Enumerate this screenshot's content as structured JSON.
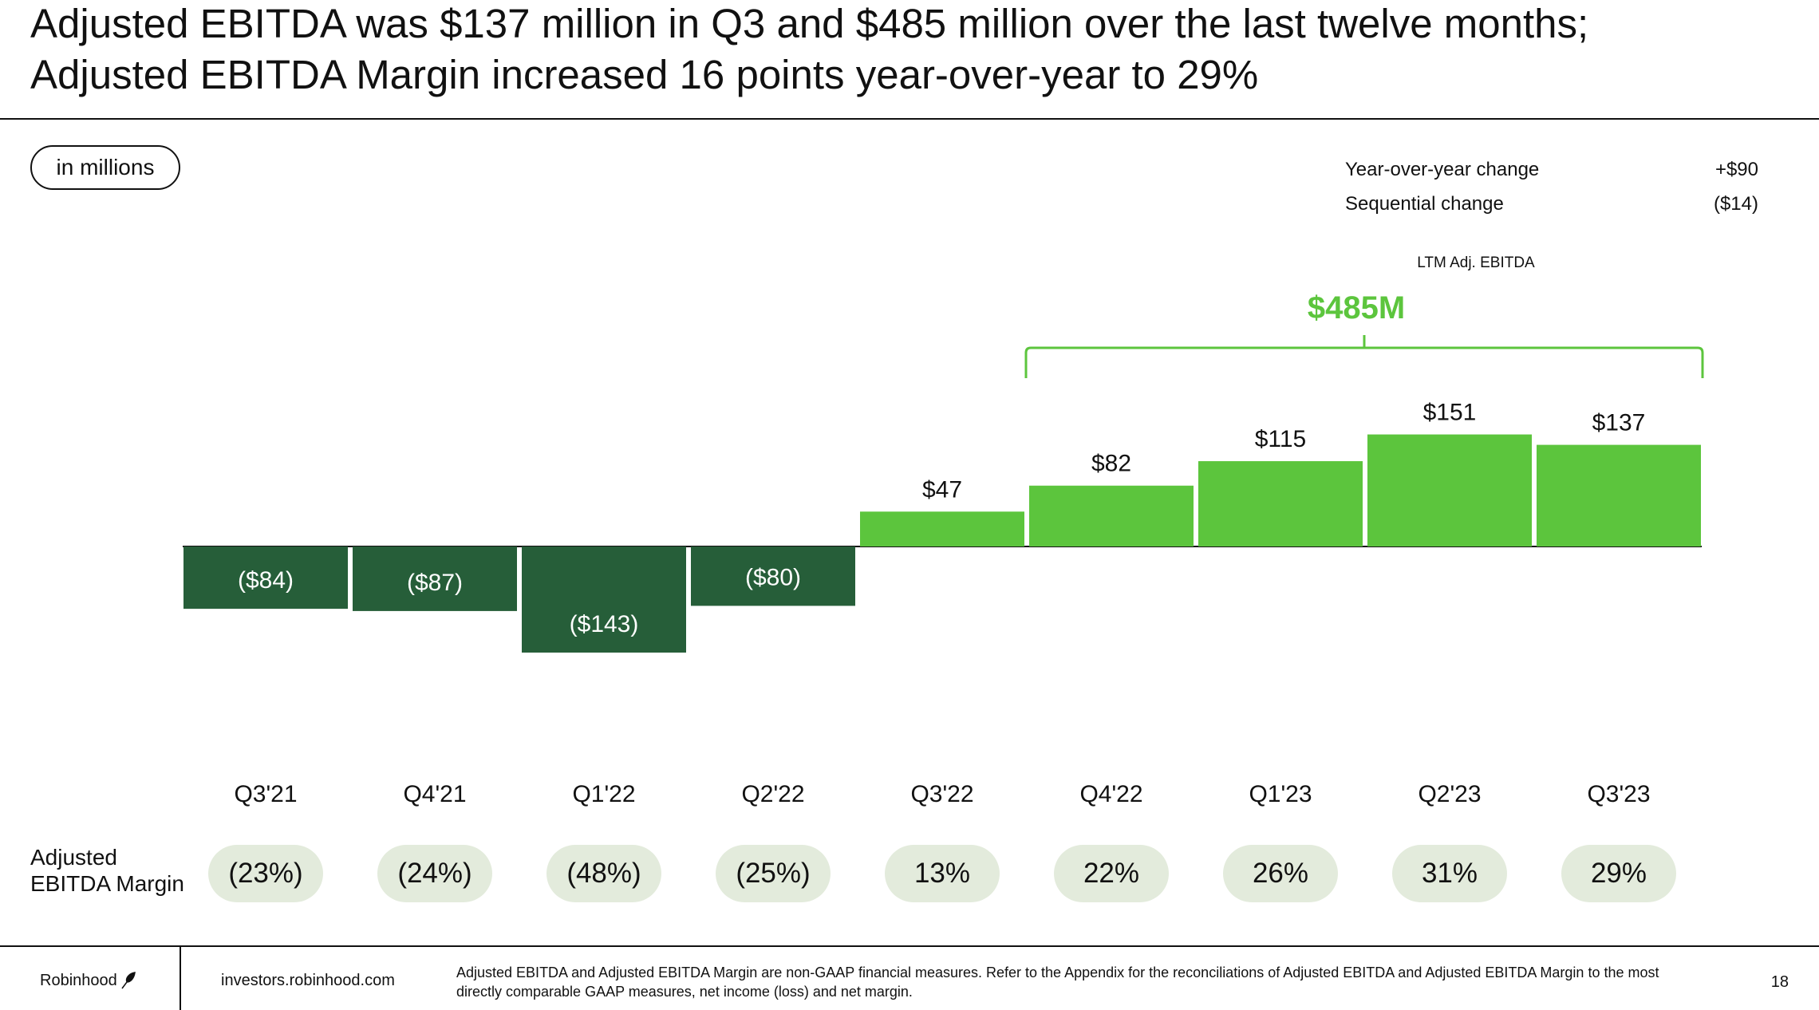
{
  "title": {
    "line1": "Adjusted EBITDA was $137 million in Q3 and $485 million over the last twelve months;",
    "line2": "Adjusted EBITDA Margin increased 16 points year-over-year to 29%"
  },
  "unit_pill": "in millions",
  "changes": {
    "yoy_label": "Year-over-year change",
    "yoy_value": "+$90",
    "seq_label": "Sequential change",
    "seq_value": "($14)"
  },
  "ltm": {
    "label": "LTM Adj. EBITDA",
    "value": "$485M"
  },
  "colors": {
    "negative_bar": "#265e39",
    "positive_bar": "#5cc53d",
    "accent": "#5cc53d",
    "margin_pill": "#e3ebdc"
  },
  "chart_data": {
    "type": "bar",
    "title": "",
    "xlabel": "",
    "ylabel": "",
    "grid": false,
    "legend": "none",
    "categories": [
      "Q3'21",
      "Q4'21",
      "Q1'22",
      "Q2'22",
      "Q3'22",
      "Q4'22",
      "Q1'23",
      "Q2'23",
      "Q3'23"
    ],
    "values": [
      -84,
      -87,
      -143,
      -80,
      47,
      82,
      115,
      151,
      137
    ],
    "value_labels": [
      "($84)",
      "($87)",
      "($143)",
      "($80)",
      "$47",
      "$82",
      "$115",
      "$151",
      "$137"
    ],
    "margin_label": "Adjusted\nEBITDA Margin",
    "margins": [
      "(23%)",
      "(24%)",
      "(48%)",
      "(25%)",
      "13%",
      "22%",
      "26%",
      "31%",
      "29%"
    ],
    "bracket_span": [
      "Q4'22",
      "Q3'23"
    ]
  },
  "footer": {
    "brand": "Robinhood",
    "site": "investors.robinhood.com",
    "footnote": "Adjusted EBITDA and Adjusted EBITDA Margin are non-GAAP financial measures. Refer to the Appendix for the reconciliations of Adjusted EBITDA and Adjusted EBITDA Margin to the most directly comparable GAAP measures, net income (loss) and net margin.",
    "page": "18"
  }
}
